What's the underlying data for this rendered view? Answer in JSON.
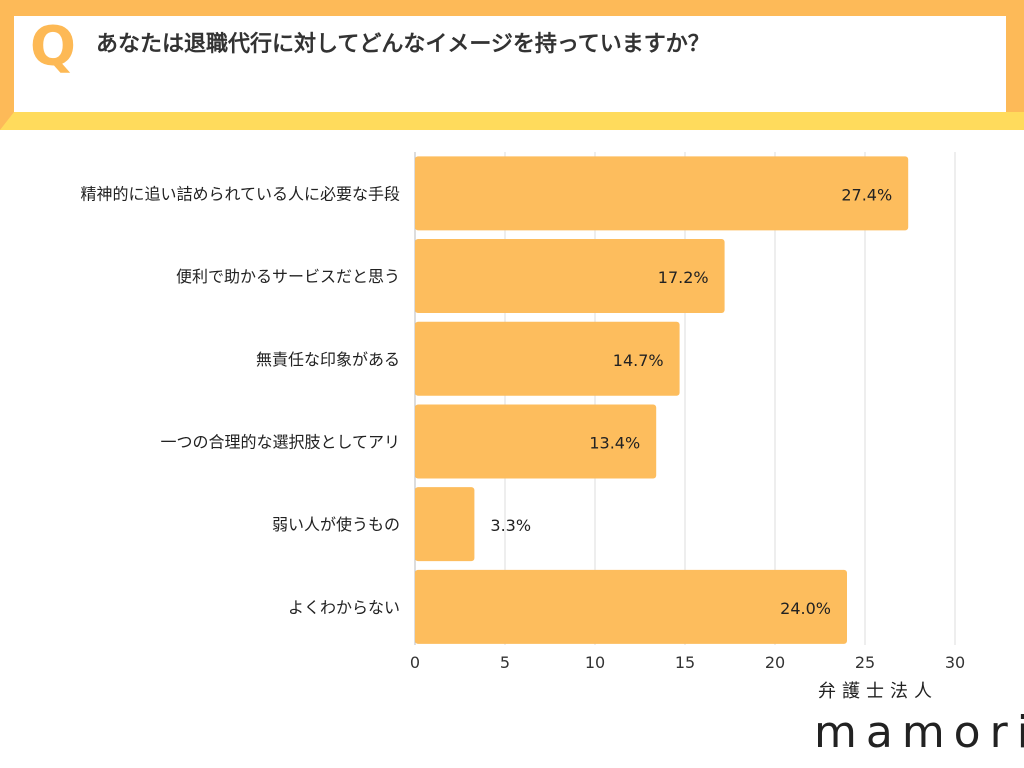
{
  "question_mark": "Q",
  "question": "あなたは退職代行に対してどんなイメージを持っていますか？",
  "logo": {
    "line1": "弁護士法人",
    "line2": "mamori"
  },
  "colors": {
    "bar": "#FDBD5D",
    "frame_top": "#FDBA58",
    "frame_bottom": "#FFDB5C",
    "q": "#FDB955"
  },
  "chart_data": {
    "type": "bar",
    "orientation": "horizontal",
    "categories": [
      "精神的に追い詰められている人に必要な手段",
      "便利で助かるサービスだと思う",
      "無責任な印象がある",
      "一つの合理的な選択肢としてアリ",
      "弱い人が使うもの",
      "よくわからない"
    ],
    "values": [
      27.4,
      17.2,
      14.7,
      13.4,
      3.3,
      24.0
    ],
    "data_labels": [
      "27.4%",
      "17.2%",
      "14.7%",
      "13.4%",
      "3.3%",
      "24.0%"
    ],
    "xlim": [
      0,
      30
    ],
    "xticks": [
      0,
      5,
      10,
      15,
      20,
      25,
      30
    ],
    "grid": true
  }
}
